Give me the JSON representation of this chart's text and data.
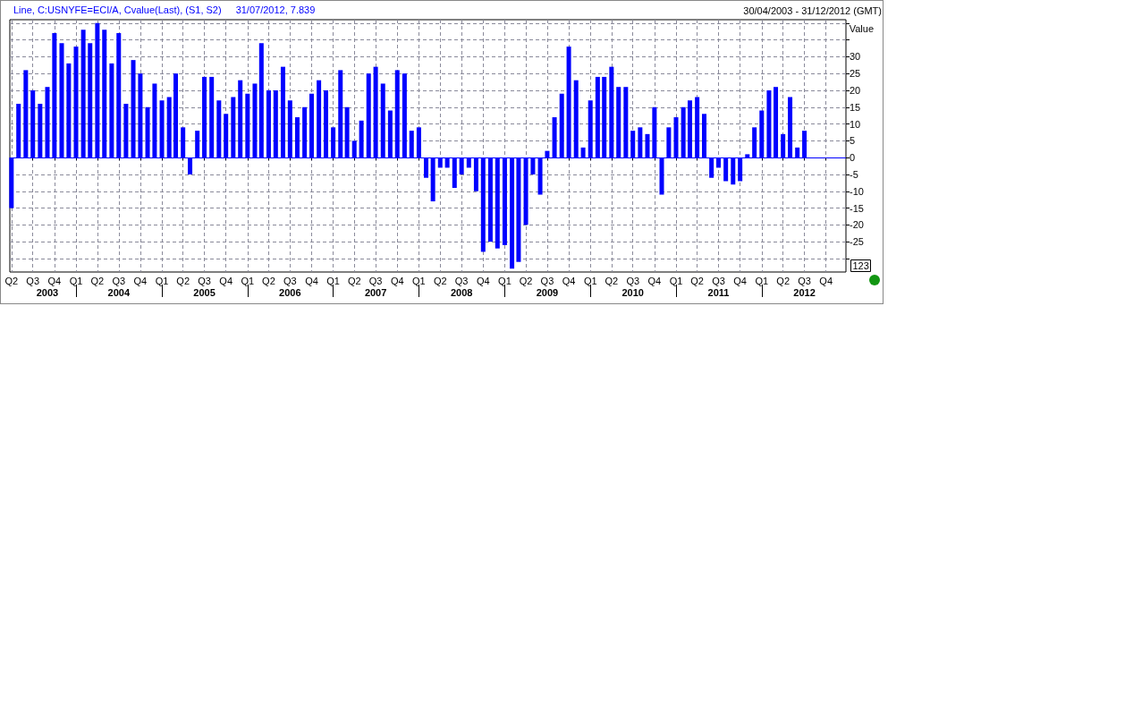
{
  "chart_data": {
    "type": "bar",
    "subtitle": "30/04/2003 - 31/12/2012 (GMT)",
    "ylabel": "Value",
    "annotations": [
      "Line, C:USNYFE=ECI/A, Cvalue(Last), (S1, S2)",
      "31/07/2012, 7.839",
      "123"
    ],
    "x": [
      "2003-04",
      "2003-05",
      "2003-06",
      "2003-07",
      "2003-08",
      "2003-09",
      "2003-10",
      "2003-11",
      "2003-12",
      "2004-01",
      "2004-02",
      "2004-03",
      "2004-04",
      "2004-05",
      "2004-06",
      "2004-07",
      "2004-08",
      "2004-09",
      "2004-10",
      "2004-11",
      "2004-12",
      "2005-01",
      "2005-02",
      "2005-03",
      "2005-04",
      "2005-05",
      "2005-06",
      "2005-07",
      "2005-08",
      "2005-09",
      "2005-10",
      "2005-11",
      "2005-12",
      "2006-01",
      "2006-02",
      "2006-03",
      "2006-04",
      "2006-05",
      "2006-06",
      "2006-07",
      "2006-08",
      "2006-09",
      "2006-10",
      "2006-11",
      "2006-12",
      "2007-01",
      "2007-02",
      "2007-03",
      "2007-04",
      "2007-05",
      "2007-06",
      "2007-07",
      "2007-08",
      "2007-09",
      "2007-10",
      "2007-11",
      "2007-12",
      "2008-01",
      "2008-02",
      "2008-03",
      "2008-04",
      "2008-05",
      "2008-06",
      "2008-07",
      "2008-08",
      "2008-09",
      "2008-10",
      "2008-11",
      "2008-12",
      "2009-01",
      "2009-02",
      "2009-03",
      "2009-04",
      "2009-05",
      "2009-06",
      "2009-07",
      "2009-08",
      "2009-09",
      "2009-10",
      "2009-11",
      "2009-12",
      "2010-01",
      "2010-02",
      "2010-03",
      "2010-04",
      "2010-05",
      "2010-06",
      "2010-07",
      "2010-08",
      "2010-09",
      "2010-10",
      "2010-11",
      "2010-12",
      "2011-01",
      "2011-02",
      "2011-03",
      "2011-04",
      "2011-05",
      "2011-06",
      "2011-07",
      "2011-08",
      "2011-09",
      "2011-10",
      "2011-11",
      "2011-12",
      "2012-01",
      "2012-02",
      "2012-03",
      "2012-04",
      "2012-05",
      "2012-06",
      "2012-07"
    ],
    "values": [
      -15,
      16,
      26,
      20,
      16,
      21,
      37,
      34,
      28,
      33,
      38,
      34,
      40,
      38,
      28,
      37,
      16,
      29,
      25,
      15,
      22,
      17,
      18,
      25,
      9,
      -5,
      8,
      24,
      24,
      17,
      13,
      18,
      23,
      19,
      22,
      34,
      20,
      20,
      27,
      17,
      12,
      15,
      19,
      23,
      20,
      9,
      26,
      15,
      5,
      11,
      25,
      27,
      22,
      14,
      26,
      25,
      8,
      9,
      -6,
      -13,
      -3,
      -3,
      -9,
      -5,
      -3,
      -10,
      -28,
      -25,
      -27,
      -26,
      -33,
      -31,
      -20,
      -5,
      -11,
      2,
      12,
      19,
      33,
      23,
      3,
      17,
      24,
      24,
      27,
      21,
      21,
      8,
      9,
      7,
      15,
      -11,
      9,
      12,
      15,
      17,
      18,
      13,
      -6,
      -3,
      -7,
      -8,
      -7,
      1,
      9,
      14,
      20,
      21,
      7,
      18,
      3,
      8
    ],
    "color": "#0000ff",
    "xlim": [
      "2003-03-25",
      "2012-12-25"
    ],
    "xticks": [
      {
        "value": "2003-04",
        "label": "Q2"
      },
      {
        "value": "2003-07",
        "label": "Q3"
      },
      {
        "value": "2003-10",
        "label": "Q4"
      },
      {
        "value": "2004-01",
        "label": "Q1"
      },
      {
        "value": "2004-04",
        "label": "Q2"
      },
      {
        "value": "2004-07",
        "label": "Q3"
      },
      {
        "value": "2004-10",
        "label": "Q4"
      },
      {
        "value": "2005-01",
        "label": "Q1"
      },
      {
        "value": "2005-04",
        "label": "Q2"
      },
      {
        "value": "2005-07",
        "label": "Q3"
      },
      {
        "value": "2005-10",
        "label": "Q4"
      },
      {
        "value": "2006-01",
        "label": "Q1"
      },
      {
        "value": "2006-04",
        "label": "Q2"
      },
      {
        "value": "2006-07",
        "label": "Q3"
      },
      {
        "value": "2006-10",
        "label": "Q4"
      },
      {
        "value": "2007-01",
        "label": "Q1"
      },
      {
        "value": "2007-04",
        "label": "Q2"
      },
      {
        "value": "2007-07",
        "label": "Q3"
      },
      {
        "value": "2007-10",
        "label": "Q4"
      },
      {
        "value": "2008-01",
        "label": "Q1"
      },
      {
        "value": "2008-04",
        "label": "Q2"
      },
      {
        "value": "2008-07",
        "label": "Q3"
      },
      {
        "value": "2008-10",
        "label": "Q4"
      },
      {
        "value": "2009-01",
        "label": "Q1"
      },
      {
        "value": "2009-04",
        "label": "Q2"
      },
      {
        "value": "2009-07",
        "label": "Q3"
      },
      {
        "value": "2009-10",
        "label": "Q4"
      },
      {
        "value": "2010-01",
        "label": "Q1"
      },
      {
        "value": "2010-04",
        "label": "Q2"
      },
      {
        "value": "2010-07",
        "label": "Q3"
      },
      {
        "value": "2010-10",
        "label": "Q4"
      },
      {
        "value": "2011-01",
        "label": "Q1"
      },
      {
        "value": "2011-04",
        "label": "Q2"
      },
      {
        "value": "2011-07",
        "label": "Q3"
      },
      {
        "value": "2011-10",
        "label": "Q4"
      },
      {
        "value": "2012-01",
        "label": "Q1"
      },
      {
        "value": "2012-04",
        "label": "Q2"
      },
      {
        "value": "2012-07",
        "label": "Q3"
      },
      {
        "value": "2012-10",
        "label": "Q4"
      }
    ],
    "x2lim": [
      "2003-03-25",
      "2012-12-25"
    ],
    "x2ticks": [
      {
        "value": "2003-09",
        "label": "2003"
      },
      {
        "value": "2004-01",
        "label": null
      },
      {
        "value": "2004-07",
        "label": "2004"
      },
      {
        "value": "2005-01",
        "label": null
      },
      {
        "value": "2005-07",
        "label": "2005"
      },
      {
        "value": "2006-01",
        "label": null
      },
      {
        "value": "2006-07",
        "label": "2006"
      },
      {
        "value": "2007-01",
        "label": null
      },
      {
        "value": "2007-07",
        "label": "2007"
      },
      {
        "value": "2008-01",
        "label": null
      },
      {
        "value": "2008-07",
        "label": "2008"
      },
      {
        "value": "2009-01",
        "label": null
      },
      {
        "value": "2009-07",
        "label": "2009"
      },
      {
        "value": "2010-01",
        "label": null
      },
      {
        "value": "2010-07",
        "label": "2010"
      },
      {
        "value": "2011-01",
        "label": null
      },
      {
        "value": "2011-07",
        "label": "2011"
      },
      {
        "value": "2012-01",
        "label": null
      },
      {
        "value": "2012-07",
        "label": "2012"
      }
    ],
    "ylim": [
      -34,
      41
    ],
    "yticks": [
      {
        "value": -30,
        "label": null
      },
      -25,
      -20,
      -15,
      -10,
      -5,
      0,
      5,
      10,
      15,
      20,
      25,
      30,
      {
        "value": 35,
        "label": null
      },
      {
        "value": 40,
        "label": null
      }
    ],
    "ref_lines": [
      {
        "axis": "y",
        "value": 0,
        "color": "#0000ff"
      }
    ],
    "grid": true
  }
}
